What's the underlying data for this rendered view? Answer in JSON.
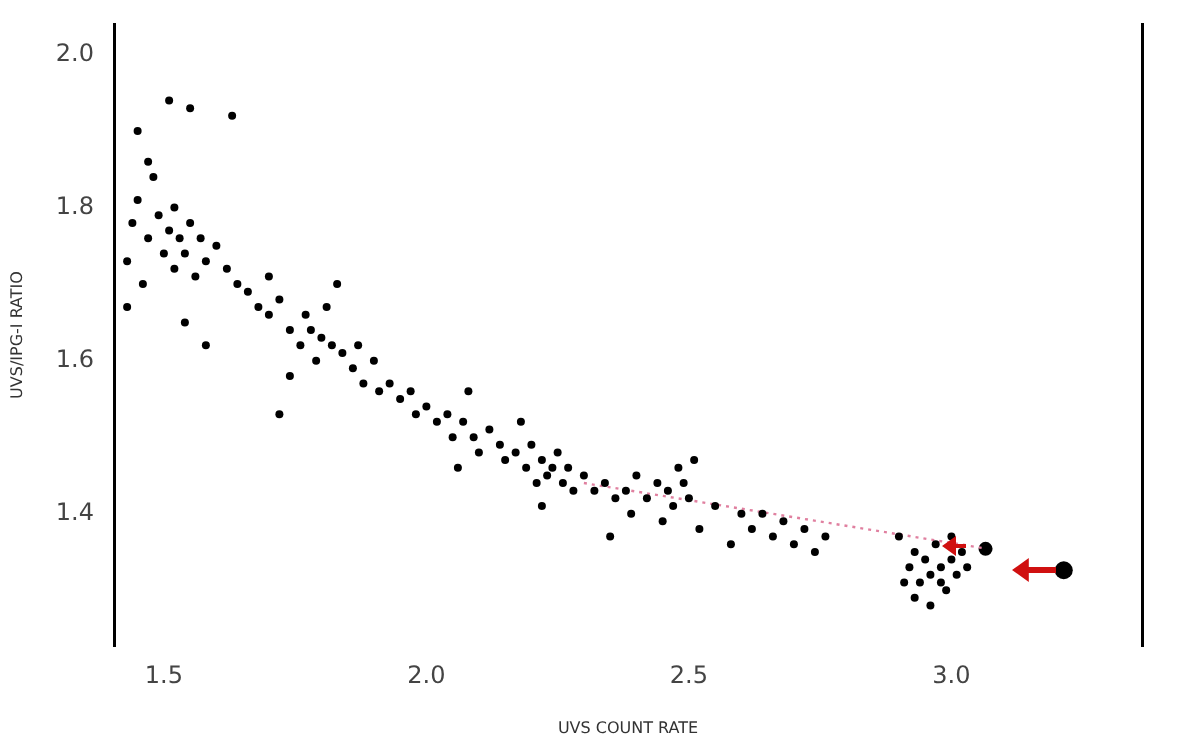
{
  "chart_data": {
    "type": "scatter",
    "xlabel": "UVS COUNT RATE",
    "ylabel": "UVS/IPG-I RATIO",
    "xlim": [
      1.405,
      3.363
    ],
    "xticks": [
      1.5,
      {
        "value": 2,
        "label": "2.0"
      },
      2.5,
      {
        "value": 3,
        "label": "3.0"
      }
    ],
    "ylim": [
      1.227,
      2.04
    ],
    "yticks": [
      1.4,
      1.6,
      1.8,
      {
        "value": 2,
        "label": "2.0"
      }
    ],
    "grid": false,
    "legend": false,
    "marker": "circle",
    "series": [
      {
        "color": "#000000",
        "x": [
          1.43,
          1.44,
          1.45,
          1.46,
          1.47,
          1.48,
          1.49,
          1.5,
          1.51,
          1.52,
          1.52,
          1.53,
          1.54,
          1.55,
          1.56,
          1.57,
          1.58,
          1.6,
          1.62,
          1.64,
          1.66,
          1.45,
          1.51,
          1.55,
          1.63,
          1.54,
          1.58,
          1.43,
          1.47,
          1.68,
          1.7,
          1.72,
          1.74,
          1.76,
          1.77,
          1.78,
          1.79,
          1.8,
          1.81,
          1.82,
          1.84,
          1.86,
          1.87,
          1.88,
          1.9,
          1.91,
          1.74,
          1.72,
          1.83,
          1.7,
          1.93,
          1.95,
          1.97,
          1.98,
          2.0,
          2.02,
          2.04,
          2.05,
          2.07,
          2.09,
          2.1,
          2.12,
          2.14,
          2.15,
          2.17,
          2.19,
          2.2,
          2.21,
          2.22,
          2.23,
          2.24,
          2.25,
          2.26,
          2.27,
          2.28,
          2.3,
          2.22,
          2.18,
          2.06,
          2.08,
          2.32,
          2.34,
          2.36,
          2.38,
          2.4,
          2.42,
          2.44,
          2.46,
          2.47,
          2.48,
          2.49,
          2.5,
          2.51,
          2.39,
          2.45,
          2.35,
          2.55,
          2.6,
          2.62,
          2.64,
          2.66,
          2.68,
          2.7,
          2.72,
          2.58,
          2.74,
          2.76,
          2.52,
          2.9,
          2.92,
          2.93,
          2.94,
          2.95,
          2.96,
          2.97,
          2.98,
          2.99,
          3.0,
          3.01,
          3.02,
          2.96,
          2.93,
          3.0,
          2.98,
          3.03,
          2.91
        ],
        "values": [
          1.73,
          1.78,
          1.81,
          1.7,
          1.76,
          1.84,
          1.79,
          1.74,
          1.77,
          1.72,
          1.8,
          1.76,
          1.74,
          1.78,
          1.71,
          1.76,
          1.73,
          1.75,
          1.72,
          1.7,
          1.69,
          1.9,
          1.94,
          1.93,
          1.92,
          1.65,
          1.62,
          1.67,
          1.86,
          1.67,
          1.66,
          1.68,
          1.64,
          1.62,
          1.66,
          1.64,
          1.6,
          1.63,
          1.67,
          1.62,
          1.61,
          1.59,
          1.62,
          1.57,
          1.6,
          1.56,
          1.58,
          1.53,
          1.7,
          1.71,
          1.57,
          1.55,
          1.56,
          1.53,
          1.54,
          1.52,
          1.53,
          1.5,
          1.52,
          1.5,
          1.48,
          1.51,
          1.49,
          1.47,
          1.48,
          1.46,
          1.49,
          1.44,
          1.47,
          1.45,
          1.46,
          1.48,
          1.44,
          1.46,
          1.43,
          1.45,
          1.41,
          1.52,
          1.46,
          1.56,
          1.43,
          1.44,
          1.42,
          1.43,
          1.45,
          1.42,
          1.44,
          1.43,
          1.41,
          1.46,
          1.44,
          1.42,
          1.47,
          1.4,
          1.39,
          1.37,
          1.41,
          1.4,
          1.38,
          1.4,
          1.37,
          1.39,
          1.36,
          1.38,
          1.36,
          1.35,
          1.37,
          1.38,
          1.37,
          1.33,
          1.35,
          1.31,
          1.34,
          1.32,
          1.36,
          1.33,
          1.3,
          1.34,
          1.32,
          1.35,
          1.28,
          1.29,
          1.37,
          1.31,
          1.33,
          1.31
        ]
      },
      {
        "type": "line",
        "color": "#e080a0",
        "line_style": "dotted",
        "marker": "none",
        "x": [
          2.3,
          3.06
        ],
        "values": [
          1.44,
          1.355
        ]
      },
      {
        "color": "#000000",
        "x": [
          3.065
        ],
        "values": [
          1.354
        ]
      },
      {
        "color": "#000000",
        "x": [
          3.214
        ],
        "values": [
          1.326
        ]
      }
    ]
  }
}
